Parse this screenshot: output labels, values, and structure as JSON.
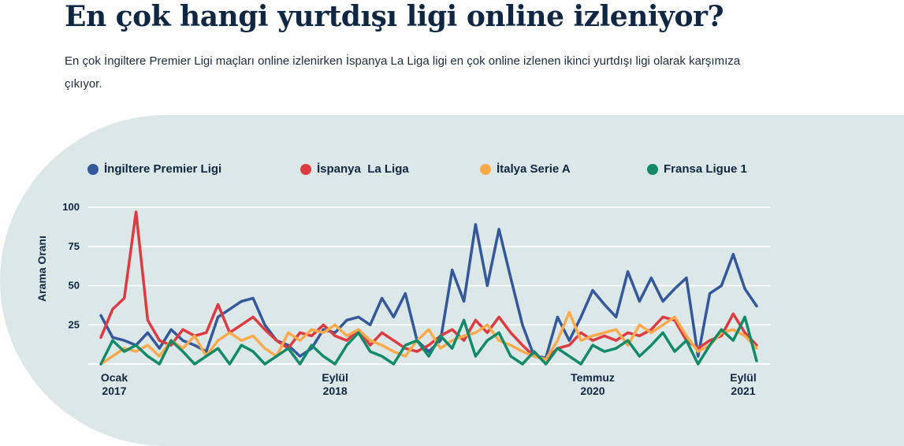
{
  "header": {
    "title": "En çok hangi yurtdışı ligi online izleniyor?",
    "subtitle": "En çok İngiltere Premier Ligi maçları online izlenirken İspanya La Liga ligi en çok online izlenen ikinci yurtdışı ligi olarak karşımıza çıkıyor."
  },
  "colors": {
    "panel": "#dce8e7",
    "grid": "#ffffff"
  },
  "chart_data": {
    "type": "line",
    "title": "",
    "ylabel": "Arama Oranı",
    "xlabel": "",
    "ylim": [
      0,
      100
    ],
    "yticks": [
      "25",
      "50",
      "75",
      "100"
    ],
    "xticks": [
      {
        "x": "2017-01",
        "line1": "Ocak",
        "line2": "2017"
      },
      {
        "x": "2018-09",
        "line1": "Eylül",
        "line2": "2018"
      },
      {
        "x": "2020-07",
        "line1": "Temmuz",
        "line2": "2020"
      },
      {
        "x": "2021-09",
        "line1": "Eylül",
        "line2": "2021"
      }
    ],
    "grid": true,
    "legend_placement": "top",
    "x": [
      "2017-01",
      "2017-02",
      "2017-03",
      "2017-04",
      "2017-05",
      "2017-06",
      "2017-07",
      "2017-08",
      "2017-09",
      "2017-10",
      "2017-11",
      "2017-12",
      "2018-01",
      "2018-02",
      "2018-03",
      "2018-04",
      "2018-05",
      "2018-06",
      "2018-07",
      "2018-08",
      "2018-09",
      "2018-10",
      "2018-11",
      "2018-12",
      "2019-01",
      "2019-02",
      "2019-03",
      "2019-04",
      "2019-05",
      "2019-06",
      "2019-07",
      "2019-08",
      "2019-09",
      "2019-10",
      "2019-11",
      "2019-12",
      "2020-01",
      "2020-02",
      "2020-03",
      "2020-04",
      "2020-05",
      "2020-06",
      "2020-07",
      "2020-08",
      "2020-09",
      "2020-10",
      "2020-11",
      "2020-12",
      "2021-01",
      "2021-02",
      "2021-03",
      "2021-04",
      "2021-05",
      "2021-06",
      "2021-07",
      "2021-08",
      "2021-09"
    ],
    "series": [
      {
        "name": "İngiltere Premier Ligi",
        "color": "#34589a",
        "values": [
          31,
          17,
          15,
          12,
          20,
          10,
          22,
          15,
          12,
          8,
          30,
          35,
          40,
          42,
          25,
          15,
          12,
          5,
          10,
          22,
          20,
          28,
          30,
          25,
          42,
          30,
          45,
          15,
          8,
          15,
          60,
          40,
          89,
          50,
          86,
          55,
          25,
          5,
          4,
          30,
          15,
          30,
          47,
          38,
          30,
          59,
          40,
          55,
          40,
          48,
          55,
          5,
          45,
          50,
          70,
          48,
          37
        ]
      },
      {
        "name": "İspanya  La Liga",
        "color": "#dd3b42",
        "values": [
          17,
          35,
          42,
          97,
          28,
          15,
          12,
          22,
          18,
          20,
          38,
          20,
          25,
          30,
          22,
          15,
          10,
          20,
          18,
          25,
          18,
          15,
          22,
          12,
          20,
          15,
          10,
          8,
          12,
          18,
          22,
          15,
          28,
          20,
          30,
          20,
          12,
          5,
          3,
          10,
          12,
          20,
          15,
          18,
          15,
          20,
          18,
          22,
          30,
          28,
          15,
          10,
          15,
          18,
          32,
          20,
          12
        ]
      },
      {
        "name": "İtalya Serie A",
        "color": "#fdaa4c",
        "values": [
          0,
          5,
          10,
          8,
          12,
          5,
          15,
          10,
          18,
          5,
          15,
          20,
          15,
          18,
          10,
          5,
          20,
          15,
          22,
          20,
          25,
          18,
          22,
          15,
          12,
          8,
          5,
          15,
          22,
          10,
          15,
          18,
          20,
          25,
          15,
          12,
          8,
          5,
          3,
          15,
          33,
          15,
          18,
          20,
          22,
          12,
          25,
          20,
          25,
          30,
          18,
          8,
          12,
          20,
          22,
          18,
          10
        ]
      },
      {
        "name": "Fransa Ligue 1",
        "color": "#128a6a",
        "values": [
          0,
          15,
          8,
          12,
          5,
          0,
          15,
          8,
          0,
          5,
          10,
          0,
          12,
          8,
          0,
          5,
          10,
          0,
          12,
          5,
          0,
          12,
          20,
          8,
          5,
          0,
          12,
          15,
          5,
          18,
          10,
          28,
          5,
          15,
          20,
          5,
          0,
          8,
          0,
          10,
          5,
          0,
          12,
          8,
          10,
          15,
          5,
          12,
          20,
          8,
          15,
          0,
          12,
          22,
          15,
          30,
          2
        ]
      }
    ]
  }
}
